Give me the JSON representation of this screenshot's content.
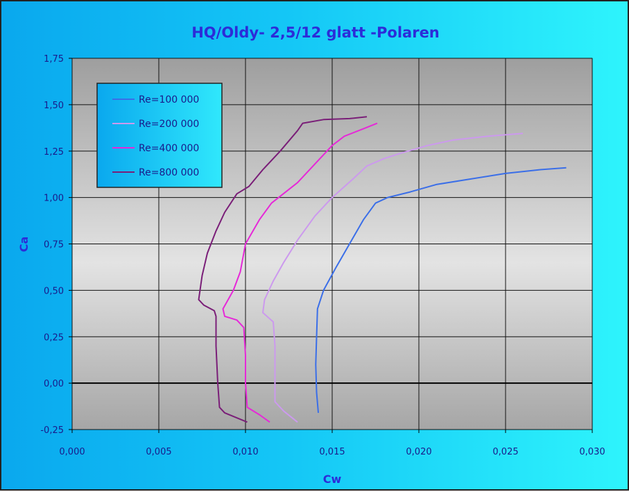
{
  "chart_data": {
    "type": "line",
    "title": "HQ/Oldy- 2,5/12 glatt -Polaren",
    "xlabel": "Cw",
    "ylabel": "Ca",
    "xlim": [
      0,
      0.03
    ],
    "ylim": [
      -0.25,
      1.75
    ],
    "x_ticks": [
      0,
      0.005,
      0.01,
      0.015,
      0.02,
      0.025,
      0.03
    ],
    "x_tick_labels": [
      "0,000",
      "0,005",
      "0,010",
      "0,015",
      "0,020",
      "0,025",
      "0,030"
    ],
    "y_ticks": [
      -0.25,
      0,
      0.25,
      0.5,
      0.75,
      1.0,
      1.25,
      1.5,
      1.75
    ],
    "y_tick_labels": [
      "-0,25",
      "0,00",
      "0,25",
      "0,50",
      "0,75",
      "1,00",
      "1,25",
      "1,50",
      "1,75"
    ],
    "grid": true,
    "legend_position": "top-left",
    "series": [
      {
        "name": "Re=100 000",
        "color": "#3a6ee8",
        "points": [
          [
            0.0142,
            -0.16
          ],
          [
            0.0141,
            -0.05
          ],
          [
            0.01405,
            0.1
          ],
          [
            0.0141,
            0.25
          ],
          [
            0.01415,
            0.4
          ],
          [
            0.0145,
            0.5
          ],
          [
            0.0152,
            0.62
          ],
          [
            0.016,
            0.75
          ],
          [
            0.0168,
            0.88
          ],
          [
            0.0175,
            0.97
          ],
          [
            0.0182,
            1.0
          ],
          [
            0.0195,
            1.03
          ],
          [
            0.021,
            1.07
          ],
          [
            0.023,
            1.1
          ],
          [
            0.025,
            1.13
          ],
          [
            0.027,
            1.15
          ],
          [
            0.0285,
            1.16
          ]
        ]
      },
      {
        "name": "Re=200 000",
        "color": "#cc99ee",
        "points": [
          [
            0.013,
            -0.21
          ],
          [
            0.0122,
            -0.15
          ],
          [
            0.0117,
            -0.1
          ],
          [
            0.0117,
            0.05
          ],
          [
            0.0117,
            0.2
          ],
          [
            0.0116,
            0.33
          ],
          [
            0.011,
            0.38
          ],
          [
            0.0111,
            0.45
          ],
          [
            0.0116,
            0.55
          ],
          [
            0.0122,
            0.65
          ],
          [
            0.013,
            0.77
          ],
          [
            0.014,
            0.9
          ],
          [
            0.015,
            1.0
          ],
          [
            0.0162,
            1.1
          ],
          [
            0.017,
            1.17
          ],
          [
            0.018,
            1.21
          ],
          [
            0.019,
            1.24
          ],
          [
            0.0205,
            1.28
          ],
          [
            0.022,
            1.31
          ],
          [
            0.024,
            1.33
          ],
          [
            0.026,
            1.345
          ]
        ]
      },
      {
        "name": "Re=400 000",
        "color": "#e628d8",
        "points": [
          [
            0.0114,
            -0.21
          ],
          [
            0.0108,
            -0.17
          ],
          [
            0.0101,
            -0.13
          ],
          [
            0.01,
            0.0
          ],
          [
            0.01,
            0.15
          ],
          [
            0.0099,
            0.3
          ],
          [
            0.0095,
            0.34
          ],
          [
            0.0088,
            0.36
          ],
          [
            0.0087,
            0.4
          ],
          [
            0.0093,
            0.5
          ],
          [
            0.0097,
            0.6
          ],
          [
            0.01,
            0.75
          ],
          [
            0.0108,
            0.88
          ],
          [
            0.0115,
            0.97
          ],
          [
            0.013,
            1.08
          ],
          [
            0.0142,
            1.2
          ],
          [
            0.015,
            1.28
          ],
          [
            0.0157,
            1.33
          ],
          [
            0.0168,
            1.37
          ],
          [
            0.0176,
            1.4
          ]
        ]
      },
      {
        "name": "Re=800 000",
        "color": "#7a1e78",
        "points": [
          [
            0.0101,
            -0.21
          ],
          [
            0.0088,
            -0.16
          ],
          [
            0.0085,
            -0.13
          ],
          [
            0.0084,
            0.0
          ],
          [
            0.0083,
            0.2
          ],
          [
            0.0083,
            0.36
          ],
          [
            0.0082,
            0.39
          ],
          [
            0.0076,
            0.42
          ],
          [
            0.0073,
            0.45
          ],
          [
            0.0075,
            0.58
          ],
          [
            0.0078,
            0.7
          ],
          [
            0.0083,
            0.82
          ],
          [
            0.0088,
            0.92
          ],
          [
            0.0095,
            1.02
          ],
          [
            0.0102,
            1.06
          ],
          [
            0.011,
            1.15
          ],
          [
            0.012,
            1.25
          ],
          [
            0.013,
            1.36
          ],
          [
            0.0133,
            1.4
          ],
          [
            0.0145,
            1.42
          ],
          [
            0.016,
            1.425
          ],
          [
            0.017,
            1.435
          ]
        ]
      }
    ]
  }
}
